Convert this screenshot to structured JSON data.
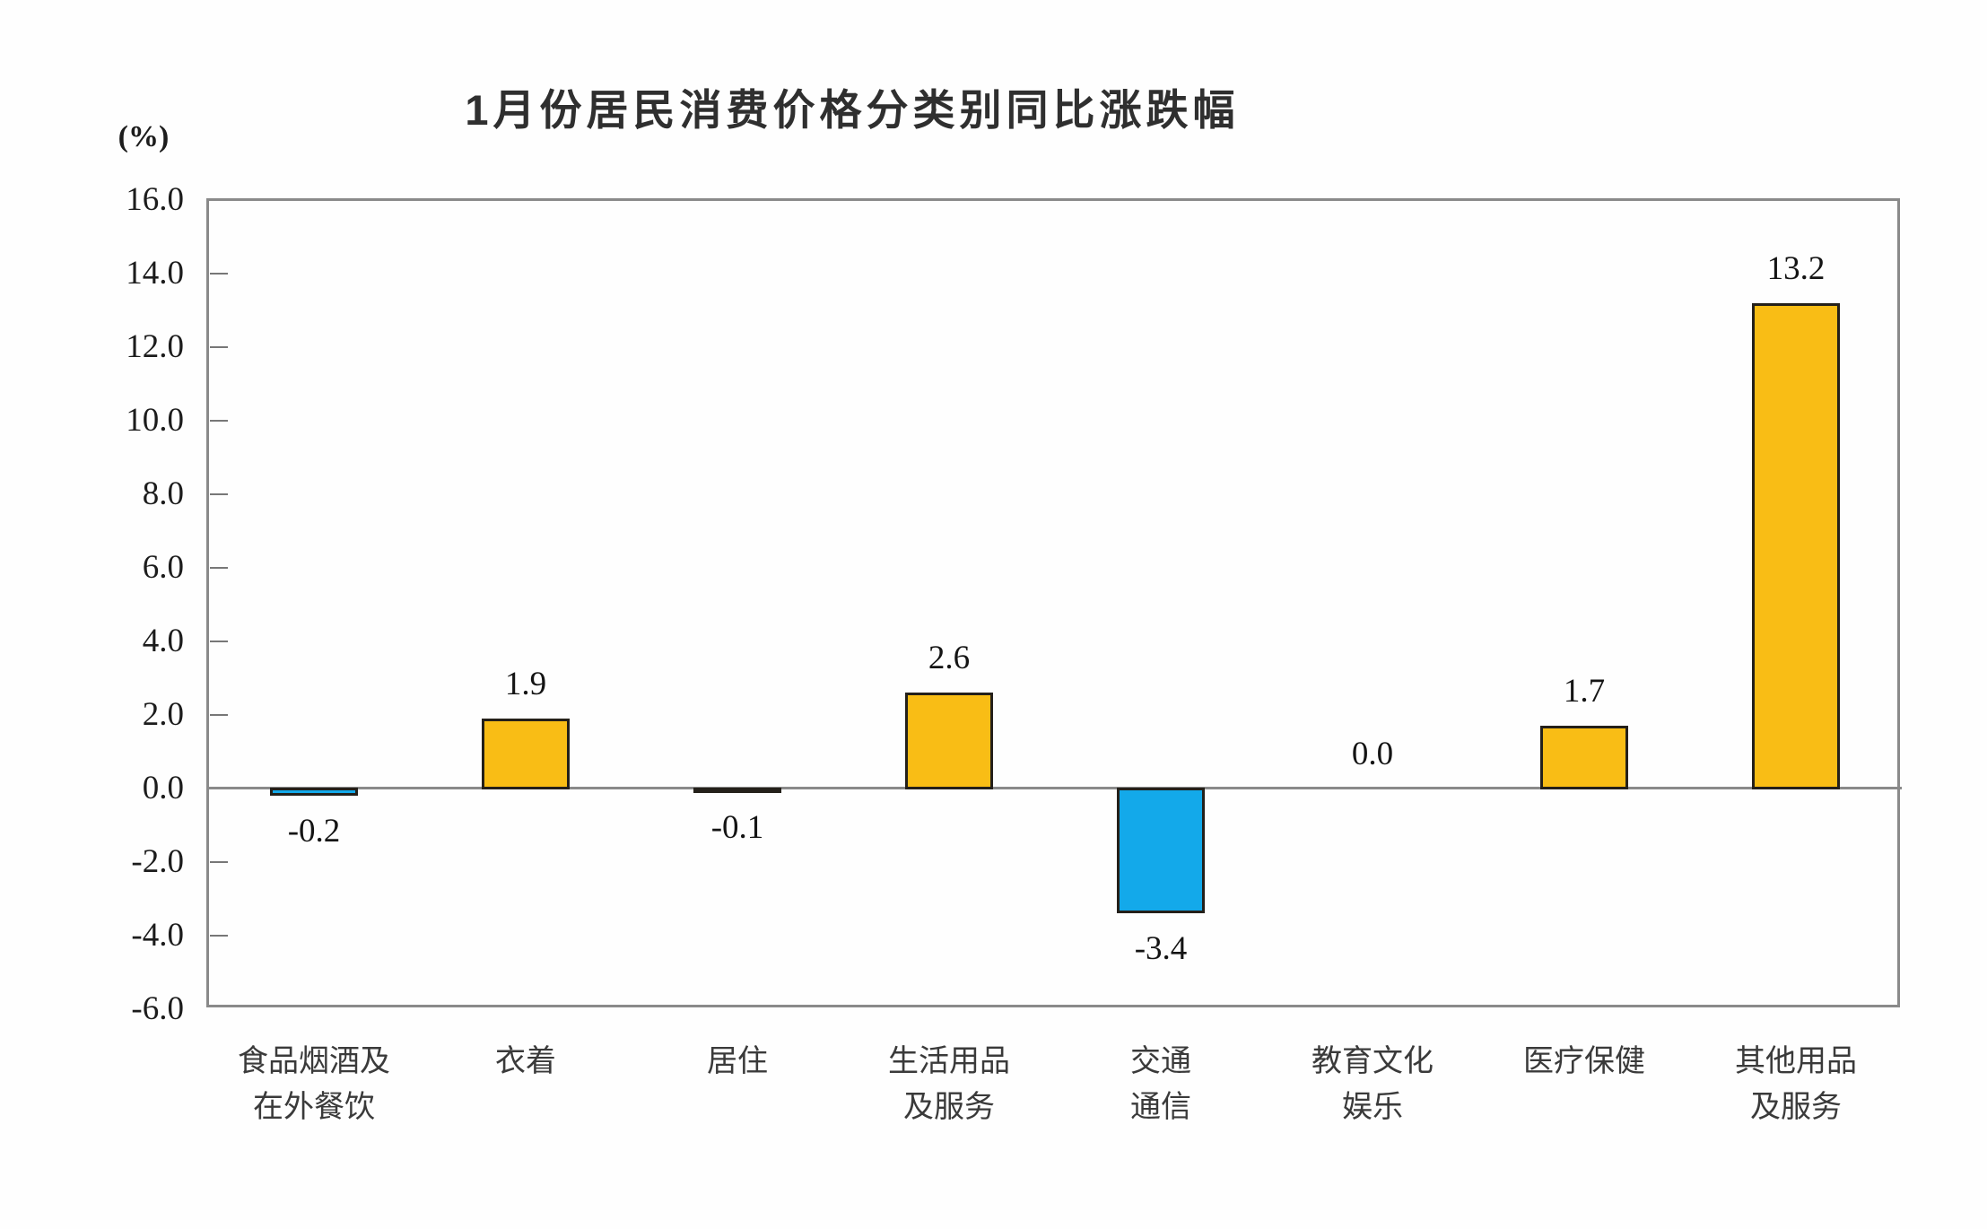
{
  "chart_data": {
    "type": "bar",
    "title": "1月份居民消费价格分类别同比涨跌幅",
    "unit_label": "(%)",
    "categories": [
      "食品烟酒及\n在外餐饮",
      "衣着",
      "居住",
      "生活用品\n及服务",
      "交通\n通信",
      "教育文化\n娱乐",
      "医疗保健",
      "其他用品\n及服务"
    ],
    "values": [
      -0.2,
      1.9,
      -0.1,
      2.6,
      -3.4,
      0.0,
      1.7,
      13.2
    ],
    "value_labels": [
      "-0.2",
      "1.9",
      "-0.1",
      "2.6",
      "-3.4",
      "0.0",
      "1.7",
      "13.2"
    ],
    "ylabel": "",
    "xlabel": "",
    "ylim": [
      -6.0,
      16.0
    ],
    "ytick_step": 2.0,
    "yticks": [
      "16.0",
      "14.0",
      "12.0",
      "10.0",
      "8.0",
      "6.0",
      "4.0",
      "2.0",
      "0.0",
      "-2.0",
      "-4.0",
      "-6.0"
    ],
    "grid": "none",
    "legend_position": "none",
    "colors": {
      "positive_bar": "#F9BD15",
      "negative_bar": "#13A9EA",
      "bar_border": "#24201a",
      "frame": "#8a8a8a",
      "tick": "#777777",
      "text": "#1c1c1c",
      "category_text": "#3a3a3a",
      "title_text": "#2f2f2f"
    }
  }
}
